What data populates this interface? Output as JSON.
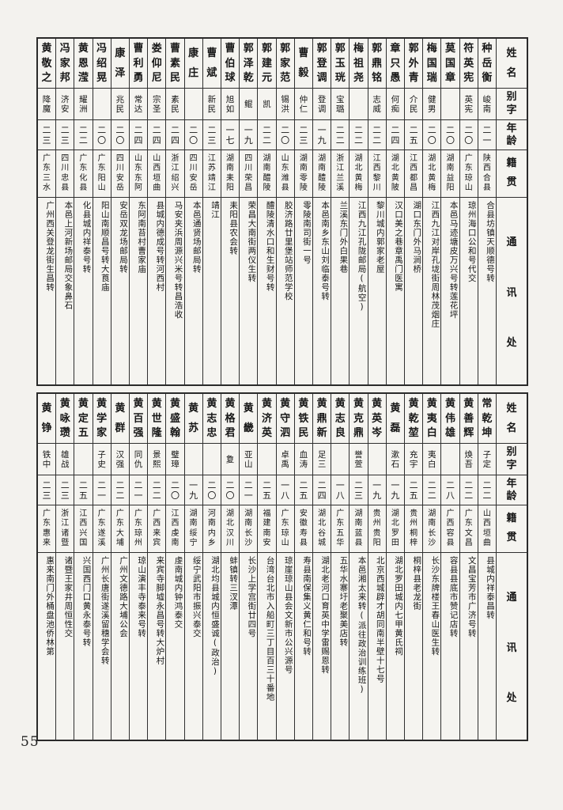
{
  "page": {
    "number": "55"
  },
  "table_headers": [
    "姓名",
    "别字",
    "年龄",
    "籍贯",
    "通讯处"
  ],
  "sections": [
    {
      "entries": [
        {
          "name": "种岳衡",
          "zi": "峻南",
          "age": "二一",
          "origin": "陕西合县",
          "address": "合县坊镇天顺德号转"
        },
        {
          "name": "符英宪",
          "zi": "英宪",
          "age": "二〇",
          "origin": "广东琼山",
          "address": "琼州海口公和号代交"
        },
        {
          "name": "莫国章",
          "zi": "",
          "age": "二〇",
          "origin": "湖南益阳",
          "address": "本邑马迹塘皮万兴号转莲花坪"
        },
        {
          "name": "梅国瑞",
          "zi": "健男",
          "age": "二〇",
          "origin": "湖北黄梅",
          "address": "江西九江对岸孔垅街周林茂烟庄"
        },
        {
          "name": "郭外青",
          "zi": "介民",
          "age": "二五",
          "origin": "江西都昌",
          "address": "湖口东门外马涧桥"
        },
        {
          "name": "章只愚",
          "zi": "何痴",
          "age": "二四",
          "origin": "湖北黄陂",
          "address": "汉口美之巷章禹门医寓"
        },
        {
          "name": "郭鼎铭",
          "zi": "志威",
          "age": "二二",
          "origin": "江西黎川",
          "address": "黎川城内郭家老屋"
        },
        {
          "name": "梅祖尧",
          "zi": "",
          "age": "二二",
          "origin": "湖北黄梅",
          "address": "江西九江孔陇邮局(航空)"
        },
        {
          "name": "郭玉珖",
          "zi": "宝璐",
          "age": "二二",
          "origin": "浙江兰溪",
          "address": "兰溪东门外白果巷"
        },
        {
          "name": "郭登调",
          "zi": "登调",
          "age": "一九",
          "origin": "湖南醴陵",
          "address": "本邑南乡东山刘临泰号转"
        },
        {
          "name": "曹毅",
          "zi": "仲仁",
          "age": "二三",
          "origin": "湖南零陵",
          "address": "零陵南司街一号"
        },
        {
          "name": "郭家范",
          "zi": "锡洪",
          "age": "二〇",
          "origin": "山东潍县",
          "address": "胶济路廿里堡站师范学校"
        },
        {
          "name": "郭建元",
          "zi": "凯",
          "age": "二二",
          "origin": "湖南醴陵",
          "address": "醴陵清水口和生财号转"
        },
        {
          "name": "郭泽乾",
          "zi": "鲲",
          "age": "一九",
          "origin": "四川荣昌",
          "address": "荣昌大南街两仪生转"
        },
        {
          "name": "曹伯球",
          "zi": "旭如",
          "age": "一七",
          "origin": "湖南耒阳",
          "address": "耒阳县农会转"
        },
        {
          "name": "曹斌",
          "zi": "新民",
          "age": "二三",
          "origin": "江苏靖江",
          "address": "靖江"
        },
        {
          "name": "康庄",
          "zi": "",
          "age": "二〇",
          "origin": "四川安岳",
          "address": "本邑通贤场邮局转"
        },
        {
          "name": "曹素民",
          "zi": "素民",
          "age": "二四",
          "origin": "浙江绍兴",
          "address": "马安夹浜周源兴米号转昌浩收"
        },
        {
          "name": "娄仰尼",
          "zi": "宗圣",
          "age": "二四",
          "origin": "山西垣曲",
          "address": "县城内德成号转河西村"
        },
        {
          "name": "曹利勇",
          "zi": "常达",
          "age": "二四",
          "origin": "山东东阿",
          "address": "东阿南苔村曹家庙"
        },
        {
          "name": "康泽",
          "zi": "兆民",
          "age": "二〇",
          "origin": "四川安岳",
          "address": "安岳双龙场邮局转"
        },
        {
          "name": "冯绍晃",
          "zi": "",
          "age": "二〇",
          "origin": "广东阳山",
          "address": "阳山南顺昌号转大莨庙"
        },
        {
          "name": "黄恩滢",
          "zi": "耀洲",
          "age": "二二",
          "origin": "广东化县",
          "address": "化县城内祥泰号转"
        },
        {
          "name": "冯家邦",
          "zi": "济安",
          "age": "二三",
          "origin": "四川忠县",
          "address": "本邑上河新场邮局交象鼻石"
        },
        {
          "name": "黄敬之",
          "zi": "降魔",
          "age": "二三",
          "origin": "广东三水",
          "address": "广州西关登龙街生昌转"
        }
      ]
    },
    {
      "entries": [
        {
          "name": "常乾坤",
          "zi": "子定",
          "age": "二二",
          "origin": "山西垣曲",
          "address": "县城内祥泰昌转"
        },
        {
          "name": "黄善辉",
          "zi": "焕吾",
          "age": "二二",
          "origin": "广东文昌",
          "address": "文昌宝芳市广济号转"
        },
        {
          "name": "黄伟雄",
          "zi": "",
          "age": "二八",
          "origin": "广西容县",
          "address": "容县县底市赞记店转"
        },
        {
          "name": "黄夷白",
          "zi": "夷白",
          "age": "二二",
          "origin": "湖南长沙",
          "address": "长沙东牌楼王春山医生转"
        },
        {
          "name": "黄乾堃",
          "zi": "充宇",
          "age": "二五",
          "origin": "贵州桐梓",
          "address": "桐梓县老龙街"
        },
        {
          "name": "黄磊",
          "zi": "漱石",
          "age": "一九",
          "origin": "湖北罗田",
          "address": "湖北罗田城内七甲黄氏祠"
        },
        {
          "name": "黄英岑",
          "zi": "",
          "age": "一九",
          "origin": "贵州贵阳",
          "address": "北京西城辟才胡同南半壁十七号"
        },
        {
          "name": "黄克鼎",
          "zi": "誉萱",
          "age": "二三",
          "origin": "湖南蓝县",
          "address": "本邑湘太来转(派往政治训练班)"
        },
        {
          "name": "黄志良",
          "zi": "",
          "age": "一八",
          "origin": "广东五华",
          "address": "五华水寨圩老聚美店转"
        },
        {
          "name": "黄鼎新",
          "zi": "足三",
          "age": "二四",
          "origin": "湖北谷城",
          "address": "湖北老河口育英中学雷赐恩转"
        },
        {
          "name": "黄铁民",
          "zi": "血涛",
          "age": "二五",
          "origin": "安徽寿县",
          "address": "寿县南保集义黄仁和号转"
        },
        {
          "name": "黄守泗",
          "zi": "卓禹",
          "age": "一八",
          "origin": "广东琼山",
          "address": "琼崖琼山县会文新市公兴源号"
        },
        {
          "name": "黄济英",
          "zi": "",
          "age": "二五",
          "origin": "福建南安",
          "address": "台湾台北市入船町三丁目百三十番地"
        },
        {
          "name": "黄畿",
          "zi": "亚山",
          "age": "二一",
          "origin": "湖南长沙",
          "address": "长沙上学宫街廿四号"
        },
        {
          "name": "黄格君",
          "zi": "夐",
          "age": "二〇",
          "origin": "湖北汉川",
          "address": "蚌镇转三汊潭"
        },
        {
          "name": "黄志忠",
          "zi": "",
          "age": "二〇",
          "origin": "河南内乡",
          "address": "湖北均县城内恒盛诚(政治)"
        },
        {
          "name": "黄苏",
          "zi": "",
          "age": "一九",
          "origin": "湖南绥宁",
          "address": "绥宁武阳市振兴泰交"
        },
        {
          "name": "黄盛翰",
          "zi": "璧璋",
          "age": "二〇",
          "origin": "江西虔南",
          "address": "虔南城内钟鸿泰交"
        },
        {
          "name": "黄世隆",
          "zi": "景熙",
          "age": "二二",
          "origin": "广西来宾",
          "address": "来宾寺脚墟永昌号转大炉村"
        },
        {
          "name": "黄百强",
          "zi": "同仇",
          "age": "二一",
          "origin": "广东琼州",
          "address": "琼山演丰寺泰来号转"
        },
        {
          "name": "黄群",
          "zi": "汉强",
          "age": "二二",
          "origin": "广东大埔",
          "address": "广州文德路大埔公会"
        },
        {
          "name": "黄学家",
          "zi": "子史",
          "age": "二一",
          "origin": "广东遂溪",
          "address": "广州长唐街遂溪留穗学会转"
        },
        {
          "name": "黄定五",
          "zi": "",
          "age": "二五",
          "origin": "江西兴国",
          "address": "兴国西门口黄永泰号转"
        },
        {
          "name": "黄咏瓒",
          "zi": "雄战",
          "age": "二三",
          "origin": "浙江诸暨",
          "address": "诸暨王家井周恒性交"
        },
        {
          "name": "黄铮",
          "zi": "铁中",
          "age": "二三",
          "origin": "广东惠来",
          "address": "惠来南门外桶盘池侨林第"
        }
      ]
    }
  ]
}
